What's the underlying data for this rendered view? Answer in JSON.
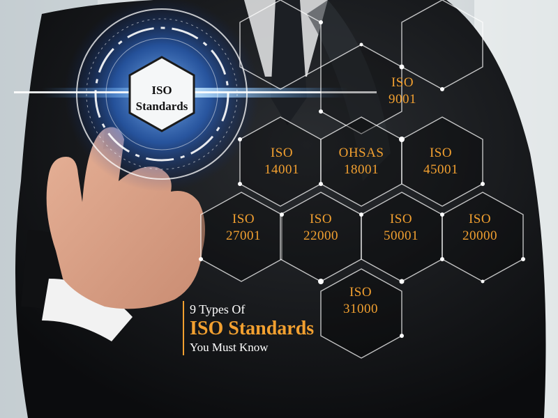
{
  "center_badge": {
    "line1": "ISO",
    "line2": "Standards"
  },
  "hexagons": [
    {
      "line1": "ISO",
      "line2": "9001"
    },
    {
      "line1": "ISO",
      "line2": "14001"
    },
    {
      "line1": "OHSAS",
      "line2": "18001"
    },
    {
      "line1": "ISO",
      "line2": "45001"
    },
    {
      "line1": "ISO",
      "line2": "27001"
    },
    {
      "line1": "ISO",
      "line2": "22000"
    },
    {
      "line1": "ISO",
      "line2": "50001"
    },
    {
      "line1": "ISO",
      "line2": "20000"
    },
    {
      "line1": "ISO",
      "line2": "31000"
    }
  ],
  "caption": {
    "line1": "9 Types Of",
    "line2": "ISO Standards",
    "line3": "You Must Know"
  },
  "colors": {
    "accent": "#f2a030",
    "glow": "#3a8cff",
    "suit": "#141619"
  }
}
